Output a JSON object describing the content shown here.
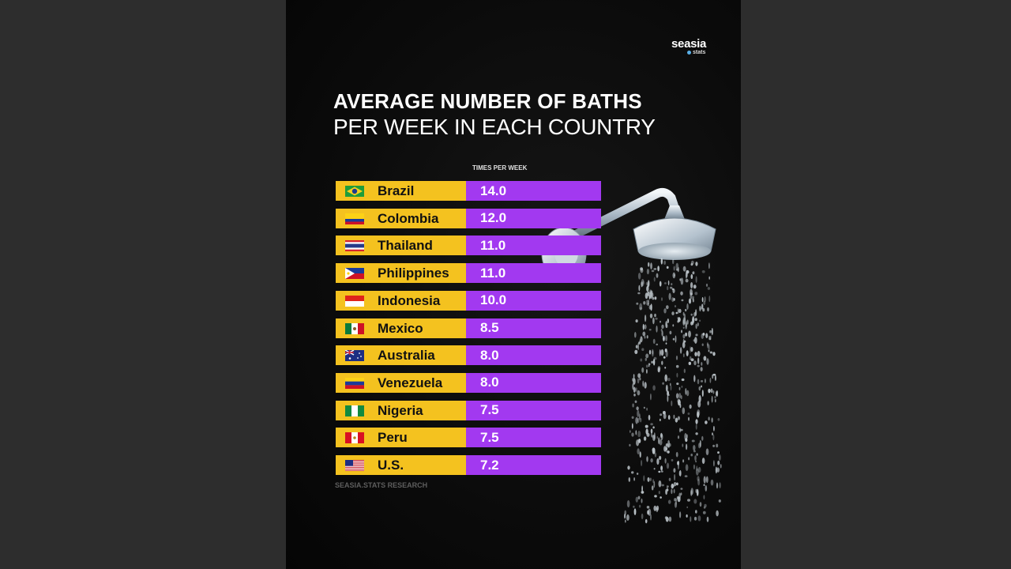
{
  "brand": {
    "name": "seasia",
    "sub": "stats"
  },
  "title_line1": "AVERAGE NUMBER OF BATHS",
  "title_line2": "PER WEEK IN EACH COUNTRY",
  "source": "SEASIA.STATS RESEARCH",
  "colors": {
    "country_cell": "#f4c21f",
    "value_cell": "#a239f0",
    "background": "#0b0b0b"
  },
  "chart_data": {
    "type": "table",
    "column_header": "TIMES PER WEEK",
    "rows": [
      {
        "country": "Brazil",
        "value": "14.0",
        "flag": "brazil-flag-icon"
      },
      {
        "country": "Colombia",
        "value": "12.0",
        "flag": "colombia-flag-icon"
      },
      {
        "country": "Thailand",
        "value": "11.0",
        "flag": "thailand-flag-icon"
      },
      {
        "country": "Philippines",
        "value": "11.0",
        "flag": "philippines-flag-icon"
      },
      {
        "country": "Indonesia",
        "value": "10.0",
        "flag": "indonesia-flag-icon"
      },
      {
        "country": "Mexico",
        "value": "8.5",
        "flag": "mexico-flag-icon"
      },
      {
        "country": "Australia",
        "value": "8.0",
        "flag": "australia-flag-icon"
      },
      {
        "country": "Venezuela",
        "value": "8.0",
        "flag": "venezuela-flag-icon"
      },
      {
        "country": "Nigeria",
        "value": "7.5",
        "flag": "nigeria-flag-icon"
      },
      {
        "country": "Peru",
        "value": "7.5",
        "flag": "peru-flag-icon"
      },
      {
        "country": "U.S.",
        "value": "7.2",
        "flag": "us-flag-icon"
      }
    ]
  }
}
